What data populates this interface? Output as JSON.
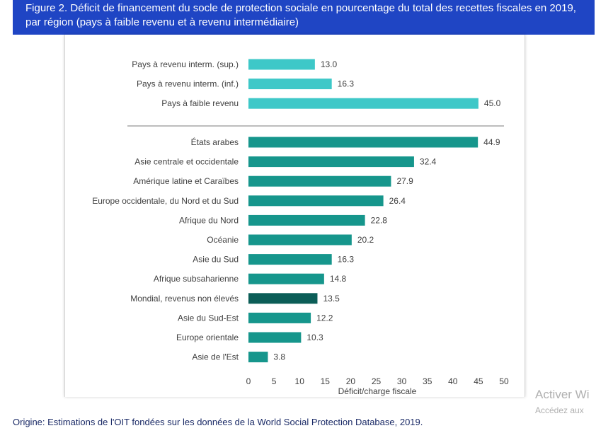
{
  "figure": {
    "title": "Figure 2. Déficit de financement du socle de protection sociale en pourcentage du total des recettes fiscales en 2019, par région (pays à faible revenu et à revenu intermédiaire)",
    "source": "Origine: Estimations de l'OIT fondées sur les données de la World Social Protection Database, 2019."
  },
  "watermark": {
    "line1": "Activer Wi",
    "line2": "Accédez aux"
  },
  "colors": {
    "income_group": "#3ec8c8",
    "region": "#16968c",
    "world": "#0b5d57",
    "banner": "#1f45c4",
    "axis_text": "#404040"
  },
  "chart_data": {
    "type": "bar",
    "orientation": "horizontal",
    "xlabel": "Déficit/charge fiscale",
    "ylabel": "",
    "xlim": [
      0,
      50
    ],
    "xticks": [
      0,
      5,
      10,
      15,
      20,
      25,
      30,
      35,
      40,
      45,
      50
    ],
    "grid": false,
    "legend": "none",
    "groups": [
      {
        "name": "",
        "categories": [
          "Pays à revenu interm. (sup.)",
          "Pays à revenu interm. (inf.)",
          "Pays à faible revenu"
        ],
        "values": [
          13.0,
          16.3,
          45.0
        ],
        "labels": [
          "13.0",
          "16.3",
          "45.0"
        ],
        "color": "income_group"
      },
      {
        "name": "",
        "categories": [
          "États arabes",
          "Asie centrale et occidentale",
          "Amérique latine et Caraïbes",
          "Europe occidentale, du Nord et du Sud",
          "Afrique du Nord",
          "Océanie",
          "Asie du Sud",
          "Afrique subsaharienne",
          "Mondial, revenus non élevés",
          "Asie du Sud-Est",
          "Europe orientale",
          "Asie de l'Est"
        ],
        "values": [
          44.9,
          32.4,
          27.9,
          26.4,
          22.8,
          20.2,
          16.3,
          14.8,
          13.5,
          12.2,
          10.3,
          3.8
        ],
        "labels": [
          "44.9",
          "32.4",
          "27.9",
          "26.4",
          "22.8",
          "20.2",
          "16.3",
          "14.8",
          "13.5",
          "12.2",
          "10.3",
          "3.8"
        ],
        "color": "region",
        "highlight": {
          "category": "Mondial, revenus non élevés",
          "color": "world"
        }
      }
    ]
  }
}
